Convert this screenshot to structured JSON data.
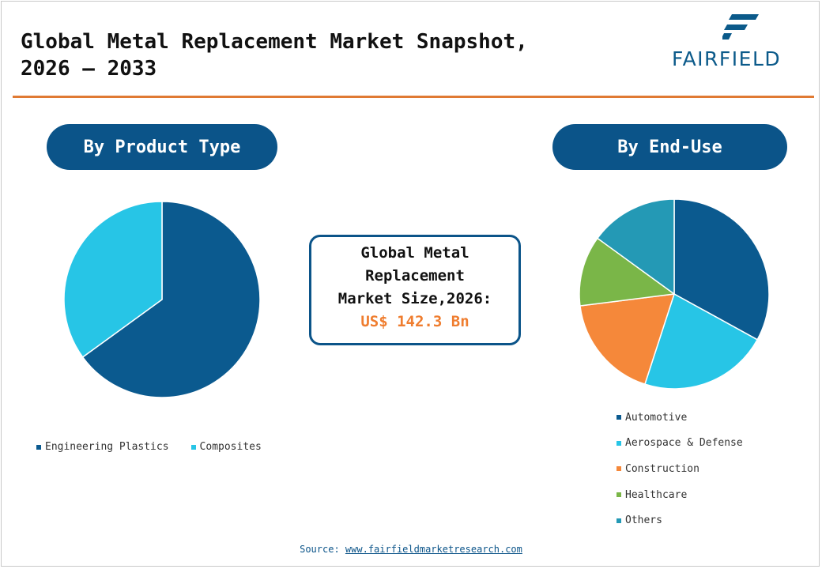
{
  "header": {
    "title_line1": "Global Metal Replacement Market Snapshot,",
    "title_line2": "2026 – 2033",
    "brand": "FAIRFIELD"
  },
  "colors": {
    "primary": "#0b5489",
    "accent": "#e07a33",
    "value": "#ef7d2f"
  },
  "left_section": {
    "label": "By Product Type"
  },
  "right_section": {
    "label": "By End-Use"
  },
  "market_box": {
    "line1": "Global Metal",
    "line2": "Replacement",
    "line3": "Market Size,2026:",
    "value": "US$ 142.3 Bn"
  },
  "chart_data": [
    {
      "type": "pie",
      "title": "By Product Type",
      "categories": [
        "Engineering Plastics",
        "Composites"
      ],
      "values": [
        65,
        35
      ],
      "colors": [
        "#0b5a8f",
        "#27c5e6"
      ],
      "legend": "bottom"
    },
    {
      "type": "pie",
      "title": "By End-Use",
      "categories": [
        "Automotive",
        "Aerospace & Defense",
        "Construction",
        "Healthcare",
        "Others"
      ],
      "values": [
        33,
        22,
        18,
        12,
        15
      ],
      "colors": [
        "#0b5a8f",
        "#27c5e6",
        "#f5883a",
        "#7ab648",
        "#2499b5"
      ],
      "legend": "bottom"
    }
  ],
  "footer": {
    "source_label": "Source:",
    "source_link": "www.fairfieldmarketresearch.com"
  }
}
